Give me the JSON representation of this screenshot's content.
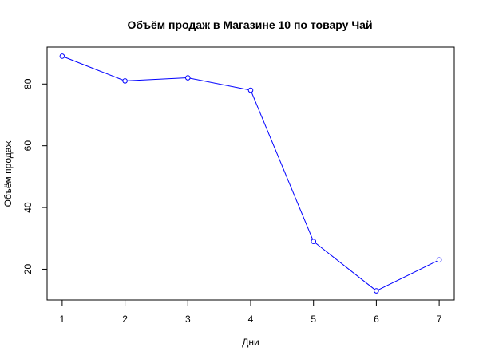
{
  "chart_data": {
    "type": "line",
    "title": "Объём продаж в Магазине 10 по товару Чай",
    "xlabel": "Дни",
    "ylabel": "Объём продаж",
    "x": [
      1,
      2,
      3,
      4,
      5,
      6,
      7
    ],
    "x_tick_labels": [
      "1",
      "2",
      "3",
      "4",
      "5",
      "6",
      "7"
    ],
    "y_ticks": [
      20,
      40,
      60,
      80
    ],
    "y_tick_labels": [
      "20",
      "40",
      "60",
      "80"
    ],
    "xlim": [
      0.76,
      7.24
    ],
    "ylim": [
      10.04,
      91.96
    ],
    "grid": false,
    "legend": "none",
    "series": [
      {
        "values": [
          89,
          81,
          82,
          78,
          29,
          13,
          23
        ],
        "color": "#0000ff",
        "marker": "open-circle"
      }
    ]
  }
}
